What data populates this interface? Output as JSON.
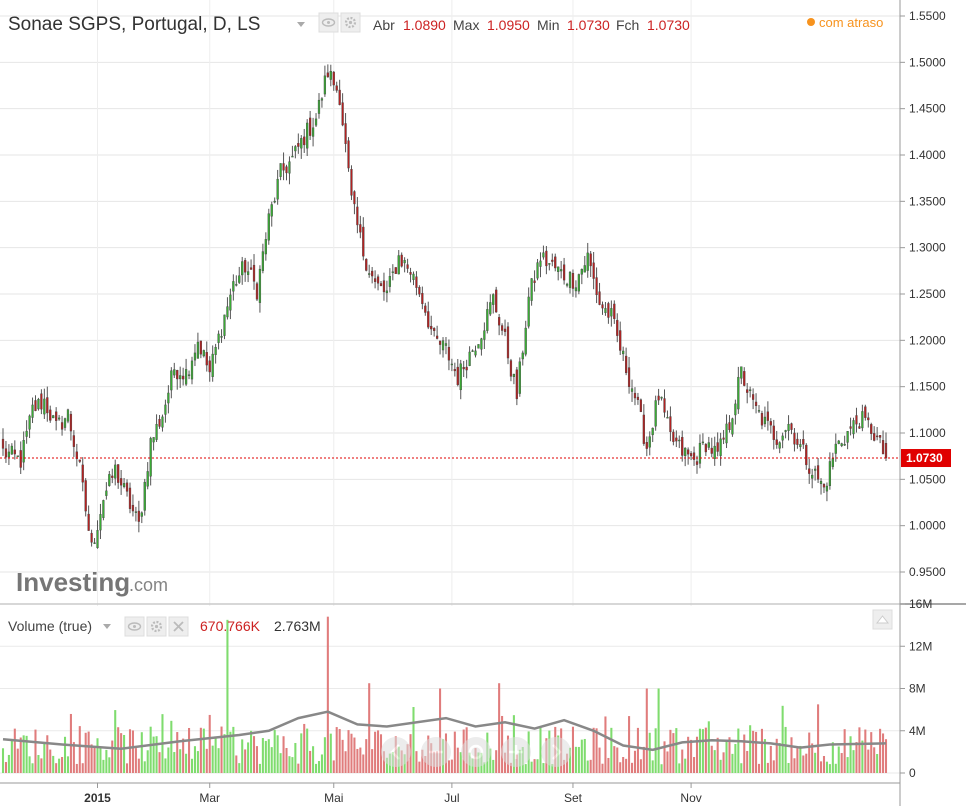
{
  "header": {
    "title": "Sonae SGPS, Portugal, D, LS",
    "ohlc": [
      {
        "label": "Abr",
        "value": "1.0890"
      },
      {
        "label": "Max",
        "value": "1.0950"
      },
      {
        "label": "Min",
        "value": "1.0730"
      },
      {
        "label": "Fch",
        "value": "1.0730"
      }
    ],
    "status": "com atraso",
    "status_color": "#f7931e"
  },
  "watermark": {
    "brand": "Investing",
    "suffix": ".com"
  },
  "volume_panel": {
    "title": "Volume (true)",
    "value1": "670.766K",
    "value2": "2.763M"
  },
  "colors": {
    "up": "#3aaa35",
    "down": "#b22222",
    "vol_up": "#7fdc6e",
    "vol_down": "#e07c7c",
    "price_line": "#e00000",
    "vol_ma": "#888888"
  },
  "chart_data": [
    {
      "type": "candlestick",
      "title": "Sonae SGPS, Portugal, D, LS",
      "x_labels": [
        "2015",
        "Mar",
        "Mai",
        "Jul",
        "Set",
        "Nov"
      ],
      "y_ticks": [
        "1.5500",
        "1.5000",
        "1.4500",
        "1.4000",
        "1.3500",
        "1.3000",
        "1.2500",
        "1.2000",
        "1.1500",
        "1.1000",
        "1.0500",
        "1.0000",
        "0.9500"
      ],
      "ylim": [
        0.93,
        1.56
      ],
      "last_price": "1.0730",
      "last_price_value": 1.073,
      "anchors": [
        [
          0,
          1.08
        ],
        [
          6,
          1.07
        ],
        [
          10,
          1.125
        ],
        [
          14,
          1.135
        ],
        [
          18,
          1.105
        ],
        [
          22,
          1.12
        ],
        [
          26,
          1.06
        ],
        [
          30,
          0.975
        ],
        [
          34,
          1.03
        ],
        [
          38,
          1.06
        ],
        [
          42,
          1.03
        ],
        [
          46,
          1.0
        ],
        [
          50,
          1.09
        ],
        [
          54,
          1.12
        ],
        [
          58,
          1.17
        ],
        [
          62,
          1.165
        ],
        [
          66,
          1.2
        ],
        [
          70,
          1.165
        ],
        [
          74,
          1.215
        ],
        [
          78,
          1.26
        ],
        [
          82,
          1.28
        ],
        [
          86,
          1.255
        ],
        [
          90,
          1.33
        ],
        [
          94,
          1.38
        ],
        [
          98,
          1.395
        ],
        [
          102,
          1.42
        ],
        [
          106,
          1.44
        ],
        [
          110,
          1.49
        ],
        [
          114,
          1.465
        ],
        [
          118,
          1.35
        ],
        [
          122,
          1.295
        ],
        [
          126,
          1.26
        ],
        [
          130,
          1.25
        ],
        [
          134,
          1.29
        ],
        [
          138,
          1.275
        ],
        [
          142,
          1.245
        ],
        [
          146,
          1.2
        ],
        [
          150,
          1.19
        ],
        [
          154,
          1.16
        ],
        [
          158,
          1.185
        ],
        [
          162,
          1.21
        ],
        [
          166,
          1.245
        ],
        [
          170,
          1.2
        ],
        [
          174,
          1.14
        ],
        [
          178,
          1.245
        ],
        [
          182,
          1.29
        ],
        [
          186,
          1.28
        ],
        [
          190,
          1.27
        ],
        [
          194,
          1.265
        ],
        [
          198,
          1.29
        ],
        [
          202,
          1.24
        ],
        [
          206,
          1.225
        ],
        [
          210,
          1.18
        ],
        [
          214,
          1.14
        ],
        [
          218,
          1.085
        ],
        [
          222,
          1.14
        ],
        [
          226,
          1.095
        ],
        [
          230,
          1.08
        ],
        [
          234,
          1.07
        ],
        [
          238,
          1.09
        ],
        [
          242,
          1.075
        ],
        [
          246,
          1.11
        ],
        [
          250,
          1.165
        ],
        [
          254,
          1.13
        ],
        [
          258,
          1.11
        ],
        [
          262,
          1.095
        ],
        [
          266,
          1.11
        ],
        [
          270,
          1.085
        ],
        [
          274,
          1.06
        ],
        [
          278,
          1.04
        ],
        [
          282,
          1.085
        ],
        [
          286,
          1.1
        ],
        [
          290,
          1.115
        ],
        [
          294,
          1.105
        ],
        [
          299,
          1.073
        ]
      ]
    },
    {
      "type": "bar",
      "title": "Volume (true)",
      "y_ticks": [
        "16M",
        "12M",
        "8M",
        "4M",
        "0"
      ],
      "ylim": [
        0,
        16
      ],
      "spikes": [
        [
          76,
          14.5
        ],
        [
          110,
          14.8
        ],
        [
          124,
          8.5
        ],
        [
          148,
          8.0
        ],
        [
          168,
          8.5
        ],
        [
          218,
          8.0
        ],
        [
          222,
          8.0
        ],
        [
          276,
          6.5
        ]
      ],
      "moving_average": [
        [
          0,
          3.2
        ],
        [
          20,
          2.7
        ],
        [
          40,
          2.3
        ],
        [
          60,
          3.0
        ],
        [
          80,
          3.6
        ],
        [
          90,
          4.0
        ],
        [
          100,
          5.2
        ],
        [
          110,
          5.8
        ],
        [
          120,
          4.6
        ],
        [
          130,
          4.4
        ],
        [
          150,
          5.2
        ],
        [
          160,
          4.4
        ],
        [
          170,
          4.8
        ],
        [
          180,
          4.2
        ],
        [
          190,
          5.0
        ],
        [
          200,
          4.0
        ],
        [
          210,
          2.6
        ],
        [
          220,
          2.2
        ],
        [
          230,
          2.9
        ],
        [
          240,
          3.1
        ],
        [
          250,
          3.0
        ],
        [
          260,
          2.8
        ],
        [
          270,
          2.4
        ],
        [
          280,
          2.7
        ],
        [
          299,
          2.8
        ]
      ]
    }
  ]
}
